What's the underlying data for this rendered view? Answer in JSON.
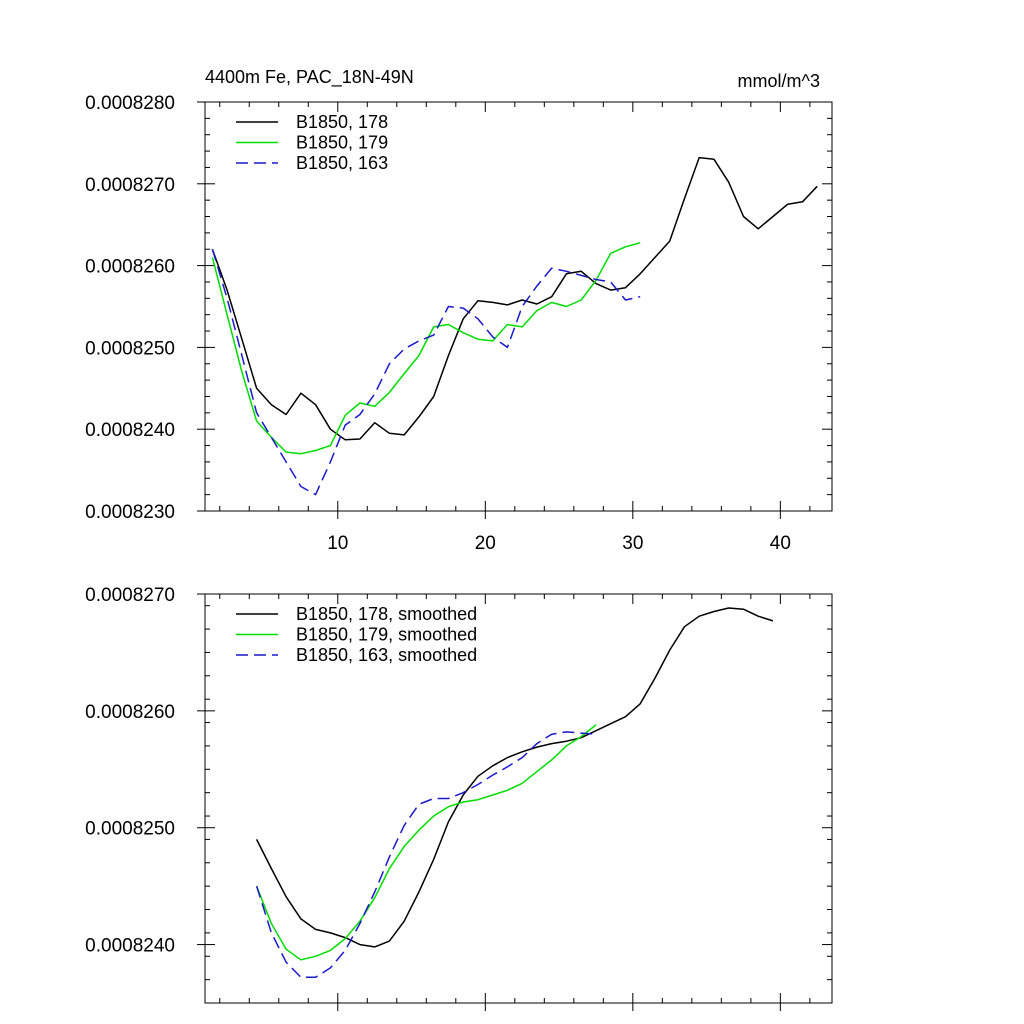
{
  "chart_data": [
    {
      "type": "line",
      "title": "4400m Fe, PAC_18N-49N",
      "units_label": "mmol/m^3",
      "xlabel": "",
      "ylabel": "",
      "xlim": [
        1,
        43.5
      ],
      "ylim": [
        0.000823,
        0.000828
      ],
      "xticks": [
        10,
        20,
        30,
        40
      ],
      "xtick_labels": [
        "10",
        "20",
        "30",
        "40"
      ],
      "yticks": [
        0.000823,
        0.000824,
        0.000825,
        0.000826,
        0.000827,
        0.000828
      ],
      "ytick_labels": [
        "0.0008230",
        "0.0008240",
        "0.0008250",
        "0.0008260",
        "0.0008270",
        "0.0008280"
      ],
      "legend_position": "top-left",
      "series": [
        {
          "name": "B1850, 178",
          "color": "#000000",
          "dash": "solid",
          "x": [
            1.5,
            2.5,
            3.5,
            4.5,
            5.5,
            6.5,
            7.5,
            8.5,
            9.5,
            10.5,
            11.5,
            12.5,
            13.5,
            14.5,
            15.5,
            16.5,
            17.5,
            18.5,
            19.5,
            20.5,
            21.5,
            22.5,
            23.5,
            24.5,
            25.5,
            26.5,
            27.5,
            28.5,
            29.5,
            30.5,
            31.5,
            32.5,
            33.5,
            34.5,
            35.5,
            36.5,
            37.5,
            38.5,
            39.5,
            40.5,
            41.5,
            42.5
          ],
          "y": [
            0.0008262,
            0.0008257,
            0.0008251,
            0.0008245,
            0.0008243,
            0.00082418,
            0.00082444,
            0.0008243,
            0.000824,
            0.00082387,
            0.00082388,
            0.00082408,
            0.00082395,
            0.00082393,
            0.00082415,
            0.0008244,
            0.0008249,
            0.00082535,
            0.00082557,
            0.00082555,
            0.00082552,
            0.00082558,
            0.00082553,
            0.00082562,
            0.0008259,
            0.00082593,
            0.00082578,
            0.0008257,
            0.00082573,
            0.0008259,
            0.0008261,
            0.0008263,
            0.00082682,
            0.00082732,
            0.0008273,
            0.00082702,
            0.0008266,
            0.00082645,
            0.0008266,
            0.00082675,
            0.00082678,
            0.00082697
          ]
        },
        {
          "name": "B1850, 179",
          "color": "#00dd00",
          "dash": "solid",
          "x": [
            1.5,
            2.5,
            3.5,
            4.5,
            5.5,
            6.5,
            7.5,
            8.5,
            9.5,
            10.5,
            11.5,
            12.5,
            13.5,
            14.5,
            15.5,
            16.5,
            17.5,
            18.5,
            19.5,
            20.5,
            21.5,
            22.5,
            23.5,
            24.5,
            25.5,
            26.5,
            27.5,
            28.5,
            29.5,
            30.5
          ],
          "y": [
            0.0008261,
            0.0008254,
            0.0008247,
            0.0008241,
            0.0008239,
            0.00082372,
            0.0008237,
            0.00082374,
            0.0008238,
            0.00082417,
            0.00082432,
            0.00082428,
            0.00082445,
            0.00082468,
            0.0008249,
            0.00082525,
            0.00082528,
            0.00082518,
            0.0008251,
            0.00082508,
            0.00082528,
            0.00082525,
            0.00082545,
            0.00082555,
            0.0008255,
            0.00082558,
            0.00082582,
            0.00082615,
            0.00082623,
            0.00082628
          ]
        },
        {
          "name": "B1850, 163",
          "color": "#1a1acc",
          "dash": "dashed",
          "x": [
            1.5,
            2.5,
            3.5,
            4.5,
            5.5,
            6.5,
            7.5,
            8.5,
            9.5,
            10.5,
            11.5,
            12.5,
            13.5,
            14.5,
            15.5,
            16.5,
            17.5,
            18.5,
            19.5,
            20.5,
            21.5,
            22.5,
            23.5,
            24.5,
            25.5,
            26.5,
            27.5,
            28.5,
            29.5,
            30.5
          ],
          "y": [
            0.0008262,
            0.0008256,
            0.0008249,
            0.0008242,
            0.0008239,
            0.0008236,
            0.0008233,
            0.0008232,
            0.0008236,
            0.00082405,
            0.00082418,
            0.00082443,
            0.0008248,
            0.00082498,
            0.00082508,
            0.00082515,
            0.0008255,
            0.00082548,
            0.00082535,
            0.00082513,
            0.000825,
            0.0008255,
            0.00082575,
            0.00082597,
            0.00082593,
            0.00082588,
            0.00082583,
            0.0008258,
            0.00082558,
            0.00082562
          ]
        }
      ]
    },
    {
      "type": "line",
      "title": "",
      "xlabel": "",
      "ylabel": "",
      "xlim": [
        1,
        43.5
      ],
      "ylim": [
        0.0008235,
        0.000827
      ],
      "xticks": [
        10,
        20,
        30,
        40
      ],
      "xtick_labels": [],
      "yticks": [
        0.000824,
        0.000825,
        0.000826,
        0.000827
      ],
      "ytick_labels": [
        "0.0008240",
        "0.0008250",
        "0.0008260",
        "0.0008270"
      ],
      "legend_position": "top-left",
      "series": [
        {
          "name": "B1850, 178, smoothed",
          "color": "#000000",
          "dash": "solid",
          "x": [
            4.5,
            5.5,
            6.5,
            7.5,
            8.5,
            9.5,
            10.5,
            11.5,
            12.5,
            13.5,
            14.5,
            15.5,
            16.5,
            17.5,
            18.5,
            19.5,
            20.5,
            21.5,
            22.5,
            23.5,
            24.5,
            25.5,
            26.5,
            27.5,
            28.5,
            29.5,
            30.5,
            31.5,
            32.5,
            33.5,
            34.5,
            35.5,
            36.5,
            37.5,
            38.5,
            39.5
          ],
          "y": [
            0.0008249,
            0.00082465,
            0.00082441,
            0.00082422,
            0.00082413,
            0.0008241,
            0.00082406,
            0.000824,
            0.00082398,
            0.00082403,
            0.0008242,
            0.00082445,
            0.00082473,
            0.00082505,
            0.00082528,
            0.00082544,
            0.00082553,
            0.0008256,
            0.00082565,
            0.00082569,
            0.00082572,
            0.00082574,
            0.00082577,
            0.00082583,
            0.00082589,
            0.00082595,
            0.00082606,
            0.00082628,
            0.00082652,
            0.00082672,
            0.00082681,
            0.00082685,
            0.00082688,
            0.00082687,
            0.00082681,
            0.00082677
          ]
        },
        {
          "name": "B1850, 179, smoothed",
          "color": "#00dd00",
          "dash": "solid",
          "x": [
            4.5,
            5.5,
            6.5,
            7.5,
            8.5,
            9.5,
            10.5,
            11.5,
            12.5,
            13.5,
            14.5,
            15.5,
            16.5,
            17.5,
            18.5,
            19.5,
            20.5,
            21.5,
            22.5,
            23.5,
            24.5,
            25.5,
            26.5,
            27.5
          ],
          "y": [
            0.0008245,
            0.00082418,
            0.00082396,
            0.00082387,
            0.0008239,
            0.00082395,
            0.00082405,
            0.0008242,
            0.0008244,
            0.00082465,
            0.00082484,
            0.00082498,
            0.0008251,
            0.00082518,
            0.00082522,
            0.00082524,
            0.00082528,
            0.00082532,
            0.00082538,
            0.00082548,
            0.00082558,
            0.0008257,
            0.00082578,
            0.00082588
          ]
        },
        {
          "name": "B1850, 163, smoothed",
          "color": "#1a1acc",
          "dash": "dashed",
          "x": [
            4.5,
            5.5,
            6.5,
            7.5,
            8.5,
            9.5,
            10.5,
            11.5,
            12.5,
            13.5,
            14.5,
            15.5,
            16.5,
            17.5,
            18.5,
            19.5,
            20.5,
            21.5,
            22.5,
            23.5,
            24.5,
            25.5,
            26.5,
            27.5
          ],
          "y": [
            0.0008245,
            0.0008241,
            0.00082385,
            0.00082372,
            0.00082372,
            0.0008238,
            0.00082395,
            0.00082418,
            0.00082445,
            0.00082475,
            0.00082502,
            0.0008252,
            0.00082525,
            0.00082525,
            0.0008253,
            0.00082537,
            0.00082545,
            0.00082552,
            0.0008256,
            0.00082572,
            0.0008258,
            0.00082582,
            0.00082581,
            0.0008258
          ]
        }
      ]
    }
  ]
}
